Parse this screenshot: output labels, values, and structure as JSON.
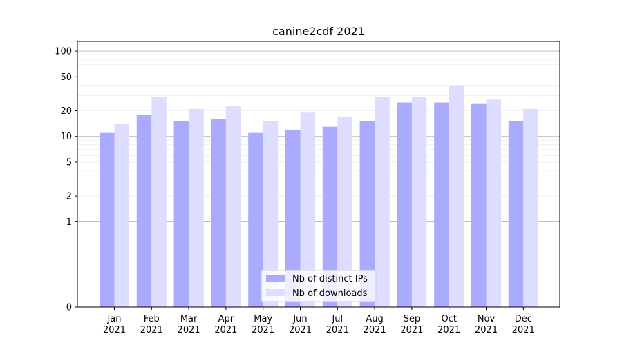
{
  "chart_data": {
    "type": "bar",
    "title": "canine2cdf 2021",
    "xlabel": "",
    "ylabel": "",
    "yscale": "symlog",
    "ylim": [
      0,
      130
    ],
    "yticks": [
      0,
      1,
      2,
      5,
      10,
      20,
      50,
      100
    ],
    "categories": [
      "Jan\n2021",
      "Feb\n2021",
      "Mar\n2021",
      "Apr\n2021",
      "May\n2021",
      "Jun\n2021",
      "Jul\n2021",
      "Aug\n2021",
      "Sep\n2021",
      "Oct\n2021",
      "Nov\n2021",
      "Dec\n2021"
    ],
    "series": [
      {
        "name": "Nb of distinct IPs",
        "color": "#aaaaff",
        "values": [
          11,
          18,
          15,
          16,
          11,
          12,
          13,
          15,
          25,
          25,
          24,
          15
        ]
      },
      {
        "name": "Nb of downloads",
        "color": "#ddddff",
        "values": [
          14,
          29,
          21,
          23,
          15,
          19,
          17,
          29,
          29,
          39,
          27,
          21
        ]
      }
    ],
    "grid": true,
    "legend_position": "bottom-center"
  }
}
